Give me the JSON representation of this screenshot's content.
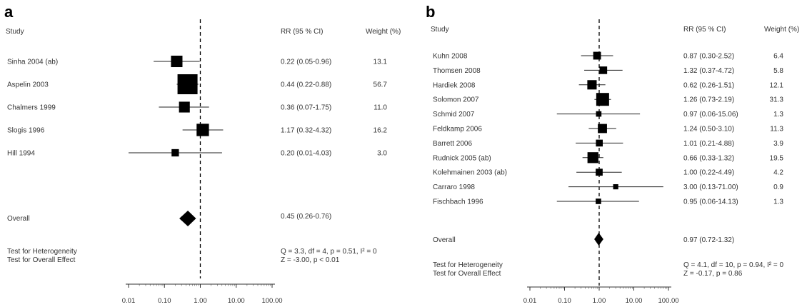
{
  "chart_data": [
    {
      "type": "forest",
      "panel_label": "a",
      "headers": {
        "study": "Study",
        "rr": "RR (95 % CI)",
        "weight": "Weight (%)"
      },
      "x_scale": "log",
      "xlim": [
        0.01,
        100
      ],
      "ticks": [
        "0.01",
        "0.10",
        "1.00",
        "10.00",
        "100.00"
      ],
      "reference_line": 1,
      "studies": [
        {
          "name": "Sinha 2004 (ab)",
          "rr": 0.22,
          "lo": 0.05,
          "hi": 0.96,
          "ci_text": "0.22 (0.05-0.96)",
          "weight": 13.1,
          "weight_text": "13.1"
        },
        {
          "name": "Aspelin 2003",
          "rr": 0.44,
          "lo": 0.22,
          "hi": 0.88,
          "ci_text": "0.44 (0.22-0.88)",
          "weight": 56.7,
          "weight_text": "56.7"
        },
        {
          "name": "Chalmers 1999",
          "rr": 0.36,
          "lo": 0.07,
          "hi": 1.75,
          "ci_text": "0.36 (0.07-1.75)",
          "weight": 11.0,
          "weight_text": "11.0"
        },
        {
          "name": "Slogis 1996",
          "rr": 1.17,
          "lo": 0.32,
          "hi": 4.32,
          "ci_text": "1.17 (0.32-4.32)",
          "weight": 16.2,
          "weight_text": "16.2"
        },
        {
          "name": "Hill 1994",
          "rr": 0.2,
          "lo": 0.01,
          "hi": 4.03,
          "ci_text": "0.20 (0.01-4.03)",
          "weight": 3.0,
          "weight_text": "3.0"
        }
      ],
      "overall": {
        "label": "Overall",
        "rr": 0.45,
        "lo": 0.26,
        "hi": 0.76,
        "ci_text": "0.45 (0.26-0.76)"
      },
      "heterogeneity": {
        "label": "Test for Heterogeneity",
        "text": "Q = 3.3,  df = 4,  p = 0.51,  I² = 0"
      },
      "overall_effect": {
        "label": "Test for Overall Effect",
        "text": "Z = -3.00,  p < 0.01"
      }
    },
    {
      "type": "forest",
      "panel_label": "b",
      "headers": {
        "study": "Study",
        "rr": "RR (95 % CI)",
        "weight": "Weight (%)"
      },
      "x_scale": "log",
      "xlim": [
        0.01,
        100
      ],
      "ticks": [
        "0.01",
        "0.10",
        "1.00",
        "10.00",
        "100.00"
      ],
      "reference_line": 1,
      "studies": [
        {
          "name": "Kuhn 2008",
          "rr": 0.87,
          "lo": 0.3,
          "hi": 2.52,
          "ci_text": "0.87 (0.30-2.52)",
          "weight": 6.4,
          "weight_text": "6.4"
        },
        {
          "name": "Thomsen 2008",
          "rr": 1.32,
          "lo": 0.37,
          "hi": 4.72,
          "ci_text": "1.32 (0.37-4.72)",
          "weight": 5.8,
          "weight_text": "5.8"
        },
        {
          "name": "Hardiek 2008",
          "rr": 0.62,
          "lo": 0.26,
          "hi": 1.51,
          "ci_text": "0.62 (0.26-1.51)",
          "weight": 12.1,
          "weight_text": "12.1"
        },
        {
          "name": "Solomon 2007",
          "rr": 1.26,
          "lo": 0.73,
          "hi": 2.19,
          "ci_text": "1.26 (0.73-2.19)",
          "weight": 31.3,
          "weight_text": "31.3"
        },
        {
          "name": "Schmid 2007",
          "rr": 0.97,
          "lo": 0.06,
          "hi": 15.06,
          "ci_text": "0.97 (0.06-15.06)",
          "weight": 1.3,
          "weight_text": "1.3"
        },
        {
          "name": "Feldkamp 2006",
          "rr": 1.24,
          "lo": 0.5,
          "hi": 3.1,
          "ci_text": "1.24 (0.50-3.10)",
          "weight": 11.3,
          "weight_text": "11.3"
        },
        {
          "name": "Barrett 2006",
          "rr": 1.01,
          "lo": 0.21,
          "hi": 4.88,
          "ci_text": "1.01 (0.21-4.88)",
          "weight": 3.9,
          "weight_text": "3.9"
        },
        {
          "name": "Rudnick 2005 (ab)",
          "rr": 0.66,
          "lo": 0.33,
          "hi": 1.32,
          "ci_text": "0.66 (0.33-1.32)",
          "weight": 19.5,
          "weight_text": "19.5"
        },
        {
          "name": "Kolehmainen 2003 (ab)",
          "rr": 1.0,
          "lo": 0.22,
          "hi": 4.49,
          "ci_text": "1.00 (0.22-4.49)",
          "weight": 4.2,
          "weight_text": "4.2"
        },
        {
          "name": "Carraro 1998",
          "rr": 3.0,
          "lo": 0.13,
          "hi": 71.0,
          "ci_text": "3.00 (0.13-71.00)",
          "weight": 0.9,
          "weight_text": "0.9"
        },
        {
          "name": "Fischbach 1996",
          "rr": 0.95,
          "lo": 0.06,
          "hi": 14.13,
          "ci_text": "0.95 (0.06-14.13)",
          "weight": 1.3,
          "weight_text": "1.3"
        }
      ],
      "overall": {
        "label": "Overall",
        "rr": 0.97,
        "lo": 0.72,
        "hi": 1.32,
        "ci_text": "0.97 (0.72-1.32)"
      },
      "heterogeneity": {
        "label": "Test for Heterogeneity",
        "text": "Q = 4.1,  df = 10,  p = 0.94,  I² = 0"
      },
      "overall_effect": {
        "label": "Test for Overall Effect",
        "text": "Z = -0.17,  p = 0.86"
      }
    }
  ]
}
